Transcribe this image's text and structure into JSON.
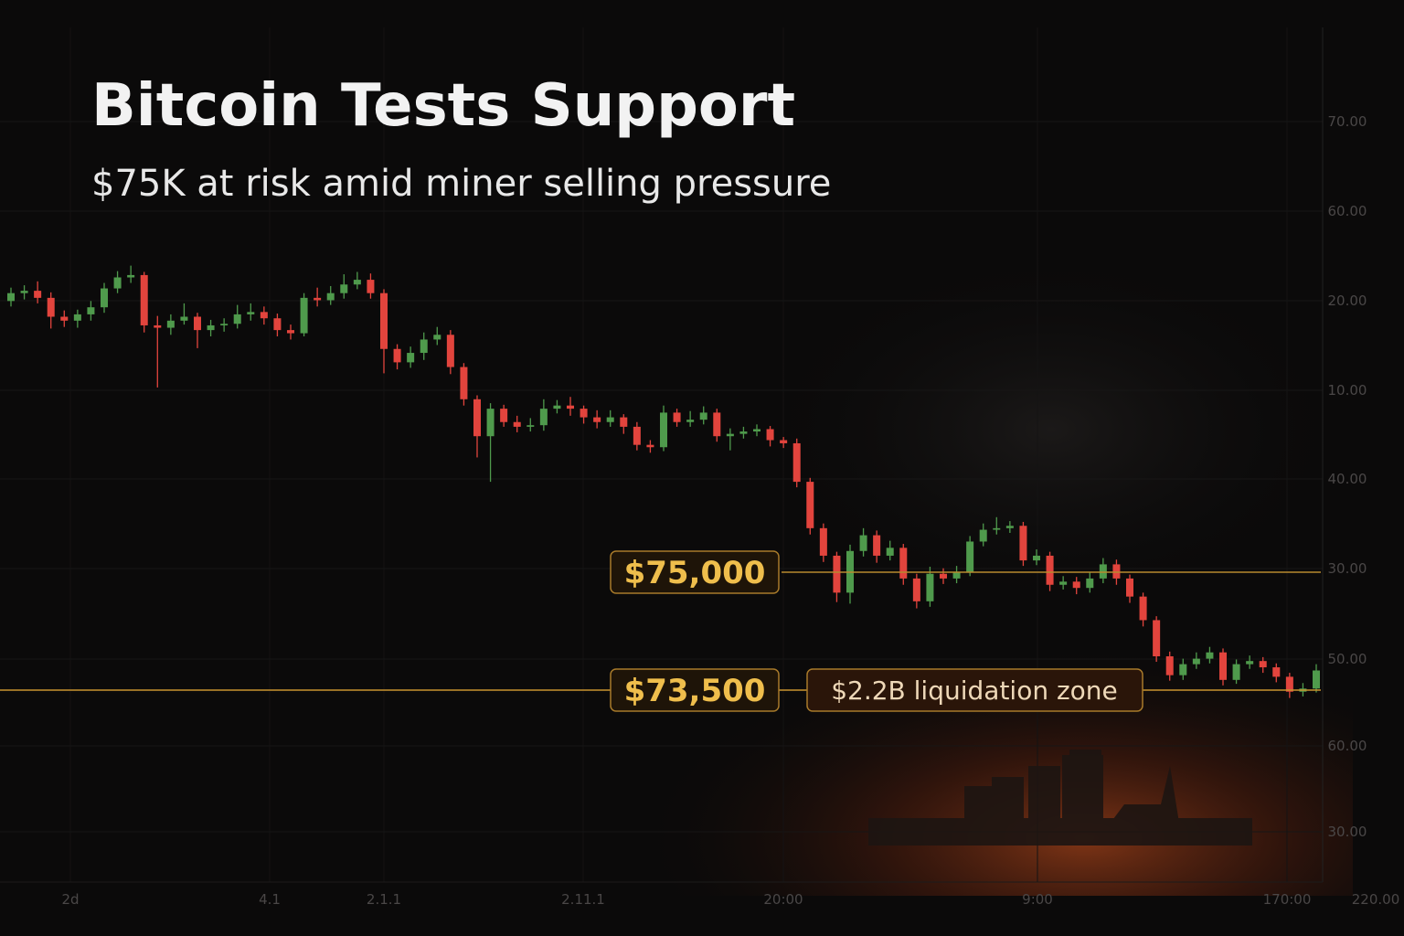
{
  "chart_data": {
    "type": "candlestick",
    "title": "Bitcoin Tests Support",
    "subtitle": "$75K at risk amid miner selling pressure",
    "open": [
      78450,
      78550,
      78580,
      78490,
      78250,
      78200,
      78280,
      78370,
      78610,
      78750,
      78780,
      78140,
      78110,
      78200,
      78250,
      78080,
      78140,
      78160,
      78280,
      78310,
      78230,
      78080,
      78040,
      78490,
      78460,
      78550,
      78660,
      78720,
      78550,
      77840,
      77670,
      77790,
      77960,
      78020,
      77610,
      77200,
      76730,
      77080,
      76910,
      76850,
      76870,
      77080,
      77120,
      77080,
      76970,
      76910,
      76970,
      76850,
      76620,
      76590,
      77030,
      76910,
      76940,
      77030,
      76730,
      76760,
      76790,
      76820,
      76680,
      76640,
      76150,
      75560,
      75210,
      74740,
      75270,
      75470,
      75210,
      75310,
      74920,
      74630,
      74980,
      74920,
      75000,
      75390,
      75540,
      75560,
      75590,
      75150,
      75210,
      74840,
      74880,
      74800,
      74920,
      75100,
      74920,
      74690,
      74390,
      73930,
      73690,
      73830,
      73900,
      73980,
      73630,
      73830,
      73870,
      73790,
      73670,
      73480,
      73520
    ],
    "high": [
      78620,
      78650,
      78700,
      78560,
      78330,
      78340,
      78450,
      78680,
      78830,
      78900,
      78820,
      78260,
      78280,
      78420,
      78300,
      78210,
      78230,
      78400,
      78420,
      78380,
      78290,
      78150,
      78550,
      78620,
      78640,
      78790,
      78820,
      78800,
      78600,
      77900,
      77870,
      78050,
      78120,
      78080,
      77660,
      77250,
      77150,
      77130,
      76990,
      76960,
      77200,
      77190,
      77230,
      77120,
      77060,
      77060,
      77010,
      76910,
      76680,
      77120,
      77080,
      77050,
      77110,
      77080,
      76830,
      76850,
      76880,
      76860,
      76720,
      76700,
      76200,
      75620,
      75260,
      75350,
      75560,
      75530,
      75400,
      75360,
      74980,
      75070,
      75050,
      75080,
      75460,
      75620,
      75700,
      75650,
      75640,
      75290,
      75260,
      74950,
      74940,
      75000,
      75180,
      75160,
      74970,
      74740,
      74440,
      73990,
      73900,
      73980,
      74050,
      74030,
      73890,
      73940,
      73920,
      73840,
      73720,
      73590,
      73830
    ],
    "low": [
      78380,
      78470,
      78420,
      78100,
      78120,
      78110,
      78200,
      78300,
      78550,
      78680,
      78050,
      77350,
      78020,
      78150,
      77850,
      78000,
      78060,
      78100,
      78200,
      78150,
      78000,
      77960,
      78000,
      78380,
      78400,
      78480,
      78600,
      78480,
      77530,
      77580,
      77600,
      77700,
      77890,
      77520,
      77120,
      76460,
      76150,
      76850,
      76780,
      76790,
      76800,
      77020,
      76990,
      76890,
      76830,
      76850,
      76760,
      76550,
      76520,
      76540,
      76850,
      76850,
      76880,
      76660,
      76550,
      76700,
      76730,
      76600,
      76580,
      76080,
      75480,
      75130,
      74620,
      74600,
      75200,
      75120,
      75150,
      74840,
      74540,
      74560,
      74850,
      74860,
      74950,
      75330,
      75480,
      75500,
      75080,
      75090,
      74760,
      74780,
      74720,
      74740,
      74860,
      74840,
      74610,
      74310,
      73860,
      73620,
      73630,
      73770,
      73840,
      73560,
      73580,
      73770,
      73720,
      73600,
      73400,
      73420,
      73470
    ],
    "close": [
      78550,
      78580,
      78490,
      78250,
      78200,
      78280,
      78370,
      78610,
      78750,
      78780,
      78140,
      78110,
      78200,
      78250,
      78080,
      78140,
      78160,
      78280,
      78310,
      78230,
      78080,
      78040,
      78490,
      78460,
      78550,
      78660,
      78720,
      78550,
      77840,
      77670,
      77790,
      77960,
      78020,
      77610,
      77200,
      76730,
      77080,
      76910,
      76850,
      76870,
      77080,
      77120,
      77080,
      76970,
      76910,
      76970,
      76850,
      76620,
      76590,
      77030,
      76910,
      76940,
      77030,
      76730,
      76760,
      76790,
      76820,
      76680,
      76640,
      76150,
      75560,
      75210,
      74740,
      75270,
      75470,
      75210,
      75310,
      74920,
      74630,
      74980,
      74920,
      75000,
      75390,
      75540,
      75560,
      75590,
      75150,
      75210,
      74840,
      74880,
      74800,
      74920,
      75100,
      74920,
      74690,
      74390,
      73930,
      73690,
      73830,
      73900,
      73980,
      73630,
      73830,
      73870,
      73790,
      73670,
      73480,
      73520,
      73750
    ],
    "up_color": "#4f9a4c",
    "down_color": "#e2443d",
    "ylim": [
      71000,
      82000
    ],
    "levels": [
      {
        "value": 75000,
        "label": "$75,000"
      },
      {
        "value": 73500,
        "label": "$73,500"
      }
    ],
    "annotation": "$2.2B liquidation zone",
    "right_axis_labels": [
      "70.00",
      "60.00",
      "20.00",
      "10.00",
      "40.00",
      "30.00",
      "50.00",
      "60.00",
      "30.00"
    ],
    "bottom_axis_labels": [
      "2d",
      "4.1",
      "2.1.1",
      "2.11.1",
      "20:00",
      "9:00",
      "170:00",
      "220.00"
    ]
  }
}
